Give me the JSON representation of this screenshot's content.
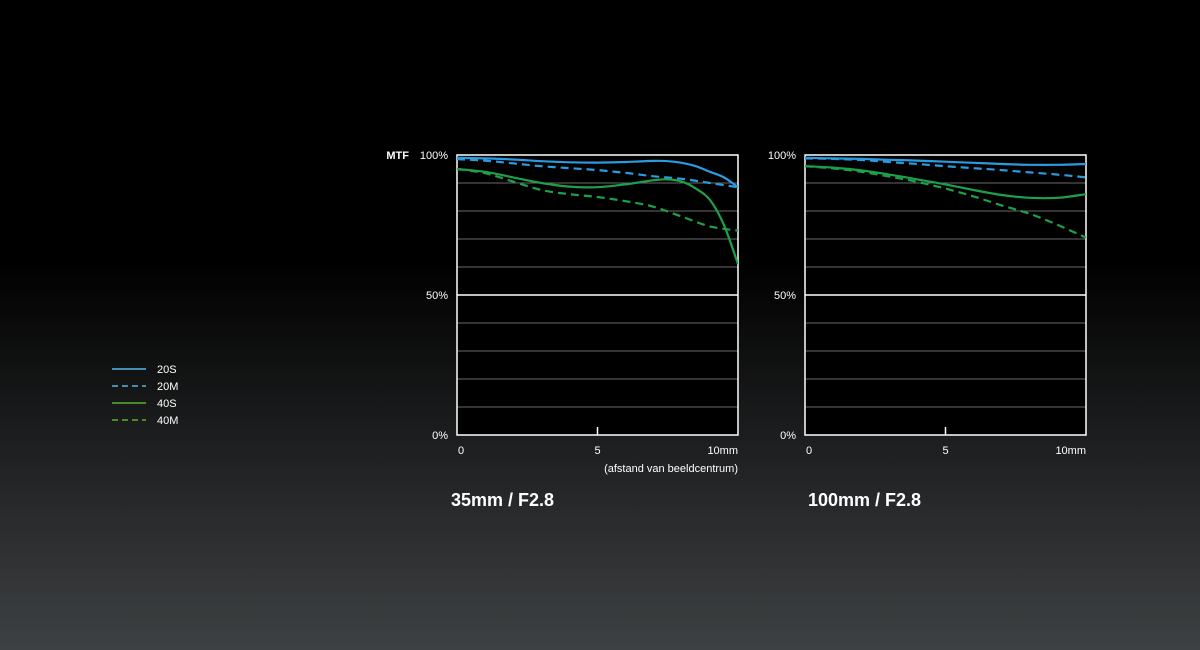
{
  "legend": [
    {
      "name": "20S",
      "color": "#2a9be0",
      "dash": "solid"
    },
    {
      "name": "20M",
      "color": "#2a9be0",
      "dash": "dashed"
    },
    {
      "name": "40S",
      "color": "#4caa3a",
      "dash": "solid"
    },
    {
      "name": "40M",
      "color": "#4caa3a",
      "dash": "dashed"
    }
  ],
  "chart_data": [
    {
      "type": "line",
      "title": "35mm / F2.8",
      "ylabel": "MTF",
      "xlabel": "(afstand van beeldcentrum)",
      "xlim": [
        0,
        10
      ],
      "ylim": [
        0,
        100
      ],
      "x_ticks": [
        "0",
        "5",
        "10mm"
      ],
      "y_ticks": [
        "0%",
        "50%",
        "100%"
      ],
      "grid": true,
      "series": [
        {
          "name": "20S",
          "color": "#2a9be0",
          "dash": "solid",
          "x": [
            0,
            1,
            2,
            3,
            4,
            5,
            6,
            7,
            7.5,
            8,
            8.5,
            9,
            9.5,
            10
          ],
          "y": [
            99,
            98.8,
            98.4,
            97.8,
            97.4,
            97.3,
            97.5,
            97.9,
            97.8,
            97.2,
            96,
            94,
            92,
            88.5
          ]
        },
        {
          "name": "20M",
          "color": "#2a9be0",
          "dash": "dashed",
          "x": [
            0,
            1,
            2,
            3,
            4,
            5,
            6,
            7,
            8,
            9,
            10
          ],
          "y": [
            98.5,
            98,
            97,
            96,
            95.3,
            94.6,
            93.6,
            92.4,
            91.5,
            90,
            88.5
          ]
        },
        {
          "name": "40S",
          "color": "#1ea04a",
          "dash": "solid",
          "x": [
            0,
            1,
            2,
            3,
            4,
            5,
            6,
            7,
            7.5,
            8,
            8.5,
            9,
            9.5,
            10
          ],
          "y": [
            95,
            94,
            92,
            90,
            88.7,
            88.5,
            89.5,
            91,
            91.3,
            90.5,
            88,
            84,
            75,
            61
          ]
        },
        {
          "name": "40M",
          "color": "#1ea04a",
          "dash": "dashed",
          "x": [
            0,
            1,
            2,
            3,
            4,
            5,
            6,
            7,
            8,
            9,
            10
          ],
          "y": [
            95,
            93.5,
            90.5,
            87.5,
            86,
            85,
            83.5,
            81.5,
            78,
            74.5,
            73
          ]
        }
      ]
    },
    {
      "type": "line",
      "title": "100mm / F2.8",
      "ylabel": "",
      "xlabel": "",
      "xlim": [
        0,
        10
      ],
      "ylim": [
        0,
        100
      ],
      "x_ticks": [
        "0",
        "5",
        "10mm"
      ],
      "y_ticks": [
        "0%",
        "50%",
        "100%"
      ],
      "grid": true,
      "series": [
        {
          "name": "20S",
          "color": "#2a9be0",
          "dash": "solid",
          "x": [
            0,
            1,
            2,
            3,
            4,
            5,
            6,
            7,
            8,
            9,
            10
          ],
          "y": [
            99,
            98.8,
            98.6,
            98.3,
            98,
            97.6,
            97.2,
            96.8,
            96.5,
            96.5,
            96.8
          ]
        },
        {
          "name": "20M",
          "color": "#2a9be0",
          "dash": "dashed",
          "x": [
            0,
            1,
            2,
            3,
            4,
            5,
            6,
            7,
            8,
            9,
            10
          ],
          "y": [
            98.8,
            98.6,
            98.2,
            97.5,
            96.8,
            96,
            95.3,
            94.6,
            93.8,
            93,
            92
          ]
        },
        {
          "name": "40S",
          "color": "#1ea04a",
          "dash": "solid",
          "x": [
            0,
            1,
            2,
            3,
            4,
            5,
            6,
            7,
            8,
            9,
            10
          ],
          "y": [
            96,
            95.5,
            94.5,
            93,
            91.3,
            89.5,
            87.5,
            85.7,
            84.7,
            84.7,
            86
          ]
        },
        {
          "name": "40M",
          "color": "#1ea04a",
          "dash": "dashed",
          "x": [
            0,
            1,
            2,
            3,
            4,
            5,
            6,
            7,
            8,
            9,
            10
          ],
          "y": [
            96,
            95.2,
            94,
            92.3,
            90.4,
            88,
            85.2,
            82,
            79,
            75,
            70.5
          ]
        }
      ]
    }
  ]
}
